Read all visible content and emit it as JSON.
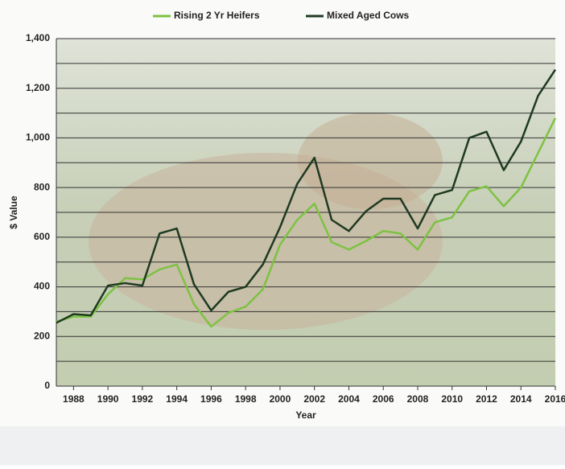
{
  "chart_data": {
    "type": "line",
    "x": [
      1987,
      1988,
      1989,
      1990,
      1991,
      1992,
      1993,
      1994,
      1995,
      1996,
      1997,
      1998,
      1999,
      2000,
      2001,
      2002,
      2003,
      2004,
      2005,
      2006,
      2007,
      2008,
      2009,
      2010,
      2011,
      2012,
      2013,
      2014,
      2015,
      2016
    ],
    "series": [
      {
        "name": "Rising 2 Yr Heifers",
        "color": "#7dc242",
        "values": [
          260,
          280,
          280,
          370,
          435,
          430,
          470,
          490,
          330,
          240,
          295,
          320,
          390,
          570,
          670,
          735,
          580,
          550,
          585,
          625,
          615,
          550,
          660,
          680,
          785,
          805,
          725,
          800,
          940,
          1080
        ]
      },
      {
        "name": "Mixed Aged Cows",
        "color": "#1f3a22",
        "values": [
          255,
          290,
          285,
          405,
          415,
          405,
          615,
          635,
          410,
          305,
          380,
          400,
          490,
          640,
          815,
          920,
          670,
          625,
          705,
          755,
          755,
          635,
          770,
          790,
          1000,
          1025,
          870,
          985,
          1170,
          1275
        ]
      }
    ],
    "xlim": [
      1987,
      2016
    ],
    "xticks": [
      1988,
      1990,
      1992,
      1994,
      1996,
      1998,
      2000,
      2002,
      2004,
      2006,
      2008,
      2010,
      2012,
      2014,
      2016
    ],
    "ylim": [
      0,
      1400
    ],
    "yticks": [
      0,
      200,
      400,
      600,
      800,
      {
        "value": 1000,
        "label": "1,000"
      },
      {
        "value": 1200,
        "label": "1,200"
      },
      {
        "value": 1400,
        "label": "1,400"
      }
    ],
    "yminor": [
      100,
      300,
      500,
      700,
      900,
      1100,
      1300
    ],
    "xlabel": "Year",
    "ylabel": "$ Value",
    "grid": true,
    "legend": "top"
  }
}
